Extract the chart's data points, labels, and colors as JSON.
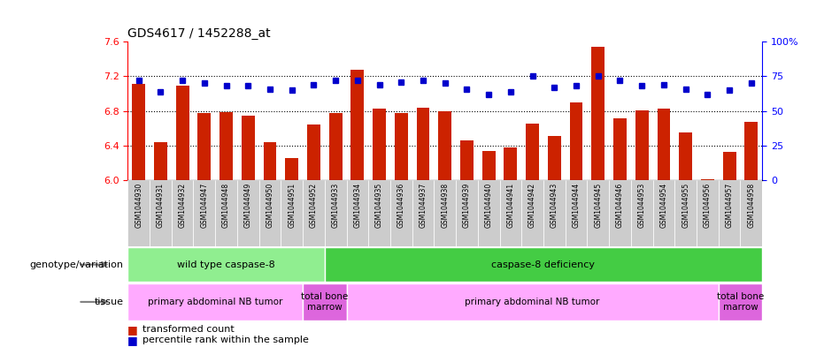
{
  "title": "GDS4617 / 1452288_at",
  "samples": [
    "GSM1044930",
    "GSM1044931",
    "GSM1044932",
    "GSM1044947",
    "GSM1044948",
    "GSM1044949",
    "GSM1044950",
    "GSM1044951",
    "GSM1044952",
    "GSM1044933",
    "GSM1044934",
    "GSM1044935",
    "GSM1044936",
    "GSM1044937",
    "GSM1044938",
    "GSM1044939",
    "GSM1044940",
    "GSM1044941",
    "GSM1044942",
    "GSM1044943",
    "GSM1044944",
    "GSM1044945",
    "GSM1044946",
    "GSM1044953",
    "GSM1044954",
    "GSM1044955",
    "GSM1044956",
    "GSM1044957",
    "GSM1044958"
  ],
  "bar_values": [
    7.11,
    6.44,
    7.09,
    6.78,
    6.79,
    6.75,
    6.44,
    6.26,
    6.64,
    6.78,
    7.28,
    6.83,
    6.78,
    6.84,
    6.8,
    6.46,
    6.34,
    6.38,
    6.66,
    6.51,
    6.9,
    7.54,
    6.72,
    6.81,
    6.83,
    6.55,
    6.01,
    6.33,
    6.68
  ],
  "dot_values": [
    72,
    64,
    72,
    70,
    68,
    68,
    66,
    65,
    69,
    72,
    72,
    69,
    71,
    72,
    70,
    66,
    62,
    64,
    75,
    67,
    68,
    75,
    72,
    68,
    69,
    66,
    62,
    65,
    70
  ],
  "ylim_left": [
    6.0,
    7.6
  ],
  "ylim_right": [
    0,
    100
  ],
  "yticks_left": [
    6.0,
    6.4,
    6.8,
    7.2,
    7.6
  ],
  "yticks_right": [
    0,
    25,
    50,
    75,
    100
  ],
  "bar_color": "#cc2200",
  "dot_color": "#0000cc",
  "bg_color": "#ffffff",
  "bar_width": 0.6,
  "hline_values": [
    6.4,
    6.8,
    7.2
  ],
  "genotype_groups": [
    {
      "label": "wild type caspase-8",
      "start": 0,
      "end": 9,
      "color": "#90ee90"
    },
    {
      "label": "caspase-8 deficiency",
      "start": 9,
      "end": 29,
      "color": "#44cc44"
    }
  ],
  "tissue_groups": [
    {
      "label": "primary abdominal NB tumor",
      "start": 0,
      "end": 8,
      "color": "#ffaaff"
    },
    {
      "label": "total bone\nmarrow",
      "start": 8,
      "end": 10,
      "color": "#dd66dd"
    },
    {
      "label": "primary abdominal NB tumor",
      "start": 10,
      "end": 27,
      "color": "#ffaaff"
    },
    {
      "label": "total bone\nmarrow",
      "start": 27,
      "end": 29,
      "color": "#dd66dd"
    }
  ],
  "legend_bar_label": "transformed count",
  "legend_dot_label": "percentile rank within the sample",
  "genotype_label": "genotype/variation",
  "tissue_label": "tissue",
  "tick_bg_color": "#cccccc",
  "right_ytick_labels": [
    "0",
    "25",
    "50",
    "75",
    "100%"
  ]
}
